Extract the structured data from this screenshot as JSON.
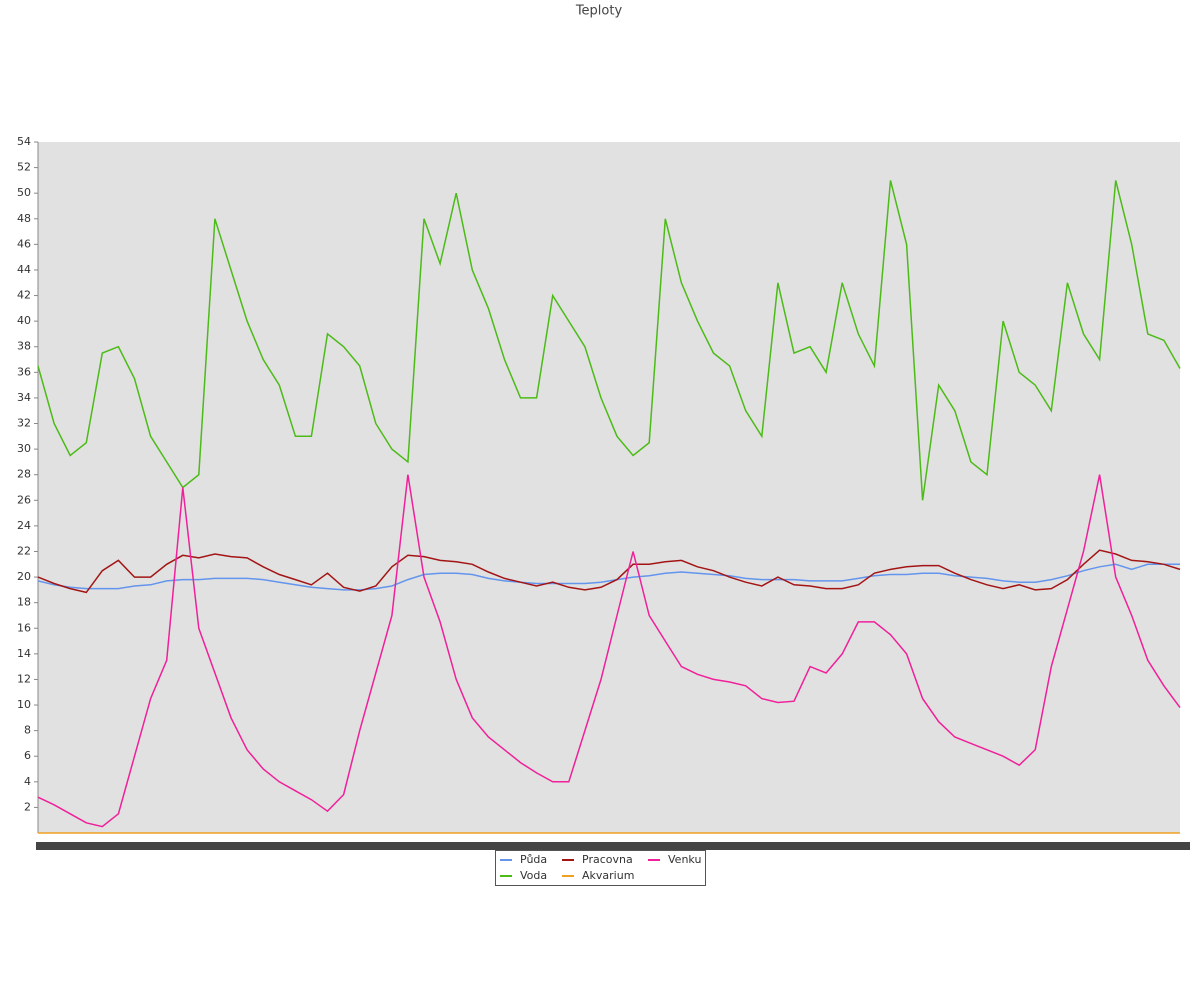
{
  "chart_data": {
    "type": "line",
    "title": "Teploty",
    "categories": [
      null,
      null,
      null,
      null,
      null,
      null,
      null,
      null,
      null,
      null,
      null,
      null,
      null,
      null,
      null,
      null,
      null,
      null,
      null,
      null,
      null,
      null,
      null,
      null,
      null,
      null,
      null,
      null,
      null,
      null,
      null,
      null,
      null,
      null,
      null,
      null,
      null,
      null,
      null,
      null,
      null,
      null,
      null,
      null,
      null,
      null,
      null,
      null,
      null,
      null,
      null,
      null,
      null,
      null,
      null,
      null,
      null,
      null,
      null,
      null,
      null,
      null,
      null,
      null,
      null,
      null,
      null,
      null,
      null,
      null,
      null,
      null
    ],
    "ylim": [
      0,
      54
    ],
    "yticks": [
      2,
      4,
      6,
      8,
      10,
      12,
      14,
      16,
      18,
      20,
      22,
      24,
      26,
      28,
      30,
      32,
      34,
      36,
      38,
      40,
      42,
      44,
      46,
      48,
      50,
      52,
      54
    ],
    "grid": false,
    "legend": "bottom",
    "series": [
      {
        "name": "Půda",
        "color": "#6495ed",
        "values": [
          19.7,
          19.4,
          19.2,
          19.1,
          19.1,
          19.1,
          19.3,
          19.4,
          19.7,
          19.8,
          19.8,
          19.9,
          19.9,
          19.9,
          19.8,
          19.6,
          19.4,
          19.2,
          19.1,
          19,
          19,
          19.1,
          19.3,
          19.8,
          20.2,
          20.3,
          20.3,
          20.2,
          19.9,
          19.7,
          19.6,
          19.5,
          19.5,
          19.5,
          19.5,
          19.6,
          19.8,
          20,
          20.1,
          20.3,
          20.4,
          20.3,
          20.2,
          20.1,
          19.9,
          19.8,
          19.8,
          19.8,
          19.7,
          19.7,
          19.7,
          19.9,
          20.1,
          20.2,
          20.2,
          20.3,
          20.3,
          20.1,
          20,
          19.9,
          19.7,
          19.6,
          19.6,
          19.8,
          20.1,
          20.5,
          20.8,
          21,
          20.6,
          21,
          21,
          21
        ]
      },
      {
        "name": "Voda",
        "color": "#4cbb17",
        "values": [
          36.5,
          32,
          29.5,
          30.5,
          37.5,
          38,
          35.5,
          31,
          29,
          27,
          28,
          48,
          44,
          40,
          37,
          35,
          31,
          31,
          39,
          38,
          36.5,
          32,
          30,
          29,
          48,
          44.5,
          50,
          44,
          41,
          37,
          34,
          34,
          42,
          40,
          38,
          34,
          31,
          29.5,
          30.5,
          48,
          43,
          40,
          37.5,
          36.5,
          33,
          31,
          43,
          37.5,
          38,
          36,
          43,
          39,
          36.5,
          51,
          46,
          26,
          35,
          33,
          29,
          28,
          40,
          36,
          35,
          33,
          43,
          39,
          37,
          51,
          46,
          39,
          38.5,
          36.3
        ]
      },
      {
        "name": "Pracovna",
        "color": "#a31515",
        "values": [
          20,
          19.5,
          19.1,
          18.8,
          20.5,
          21.3,
          20,
          20,
          21,
          21.7,
          21.5,
          21.8,
          21.6,
          21.5,
          20.8,
          20.2,
          19.8,
          19.4,
          20.3,
          19.2,
          18.9,
          19.3,
          20.8,
          21.7,
          21.6,
          21.3,
          21.2,
          21,
          20.4,
          19.9,
          19.6,
          19.3,
          19.6,
          19.2,
          19,
          19.2,
          19.8,
          21,
          21,
          21.2,
          21.3,
          20.8,
          20.5,
          20,
          19.6,
          19.3,
          20,
          19.4,
          19.3,
          19.1,
          19.1,
          19.4,
          20.3,
          20.6,
          20.8,
          20.9,
          20.9,
          20.3,
          19.8,
          19.4,
          19.1,
          19.4,
          19,
          19.1,
          19.8,
          21,
          22.1,
          21.8,
          21.3,
          21.2,
          21,
          20.6
        ]
      },
      {
        "name": "Akvarium",
        "color": "#f0a020",
        "values": [
          0,
          0,
          0,
          0,
          0,
          0,
          0,
          0,
          0,
          0,
          0,
          0,
          0,
          0,
          0,
          0,
          0,
          0,
          0,
          0,
          0,
          0,
          0,
          0,
          0,
          0,
          0,
          0,
          0,
          0,
          0,
          0,
          0,
          0,
          0,
          0,
          0,
          0,
          0,
          0,
          0,
          0,
          0,
          0,
          0,
          0,
          0,
          0,
          0,
          0,
          0,
          0,
          0,
          0,
          0,
          0,
          0,
          0,
          0,
          0,
          0,
          0,
          0,
          0,
          0,
          0,
          0,
          0,
          0,
          0,
          0,
          0
        ]
      },
      {
        "name": "Venku",
        "color": "#f0209a",
        "values": [
          2.8,
          2.2,
          1.5,
          0.8,
          0.5,
          1.5,
          6,
          10.5,
          13.5,
          27,
          16,
          12.5,
          9,
          6.5,
          5,
          4,
          3.3,
          2.6,
          1.7,
          3,
          8,
          12.5,
          17,
          28,
          20,
          16.5,
          12,
          9,
          7.5,
          6.5,
          5.5,
          4.7,
          4,
          4,
          8,
          12,
          17,
          22,
          17,
          15,
          13,
          12.4,
          12,
          11.8,
          11.5,
          10.5,
          10.2,
          10.3,
          13,
          12.5,
          14,
          16.5,
          16.5,
          15.5,
          14,
          10.5,
          8.7,
          7.5,
          7,
          6.5,
          6,
          5.3,
          6.5,
          13,
          17.5,
          22,
          28,
          20,
          17,
          13.5,
          11.5,
          9.8
        ]
      }
    ]
  }
}
